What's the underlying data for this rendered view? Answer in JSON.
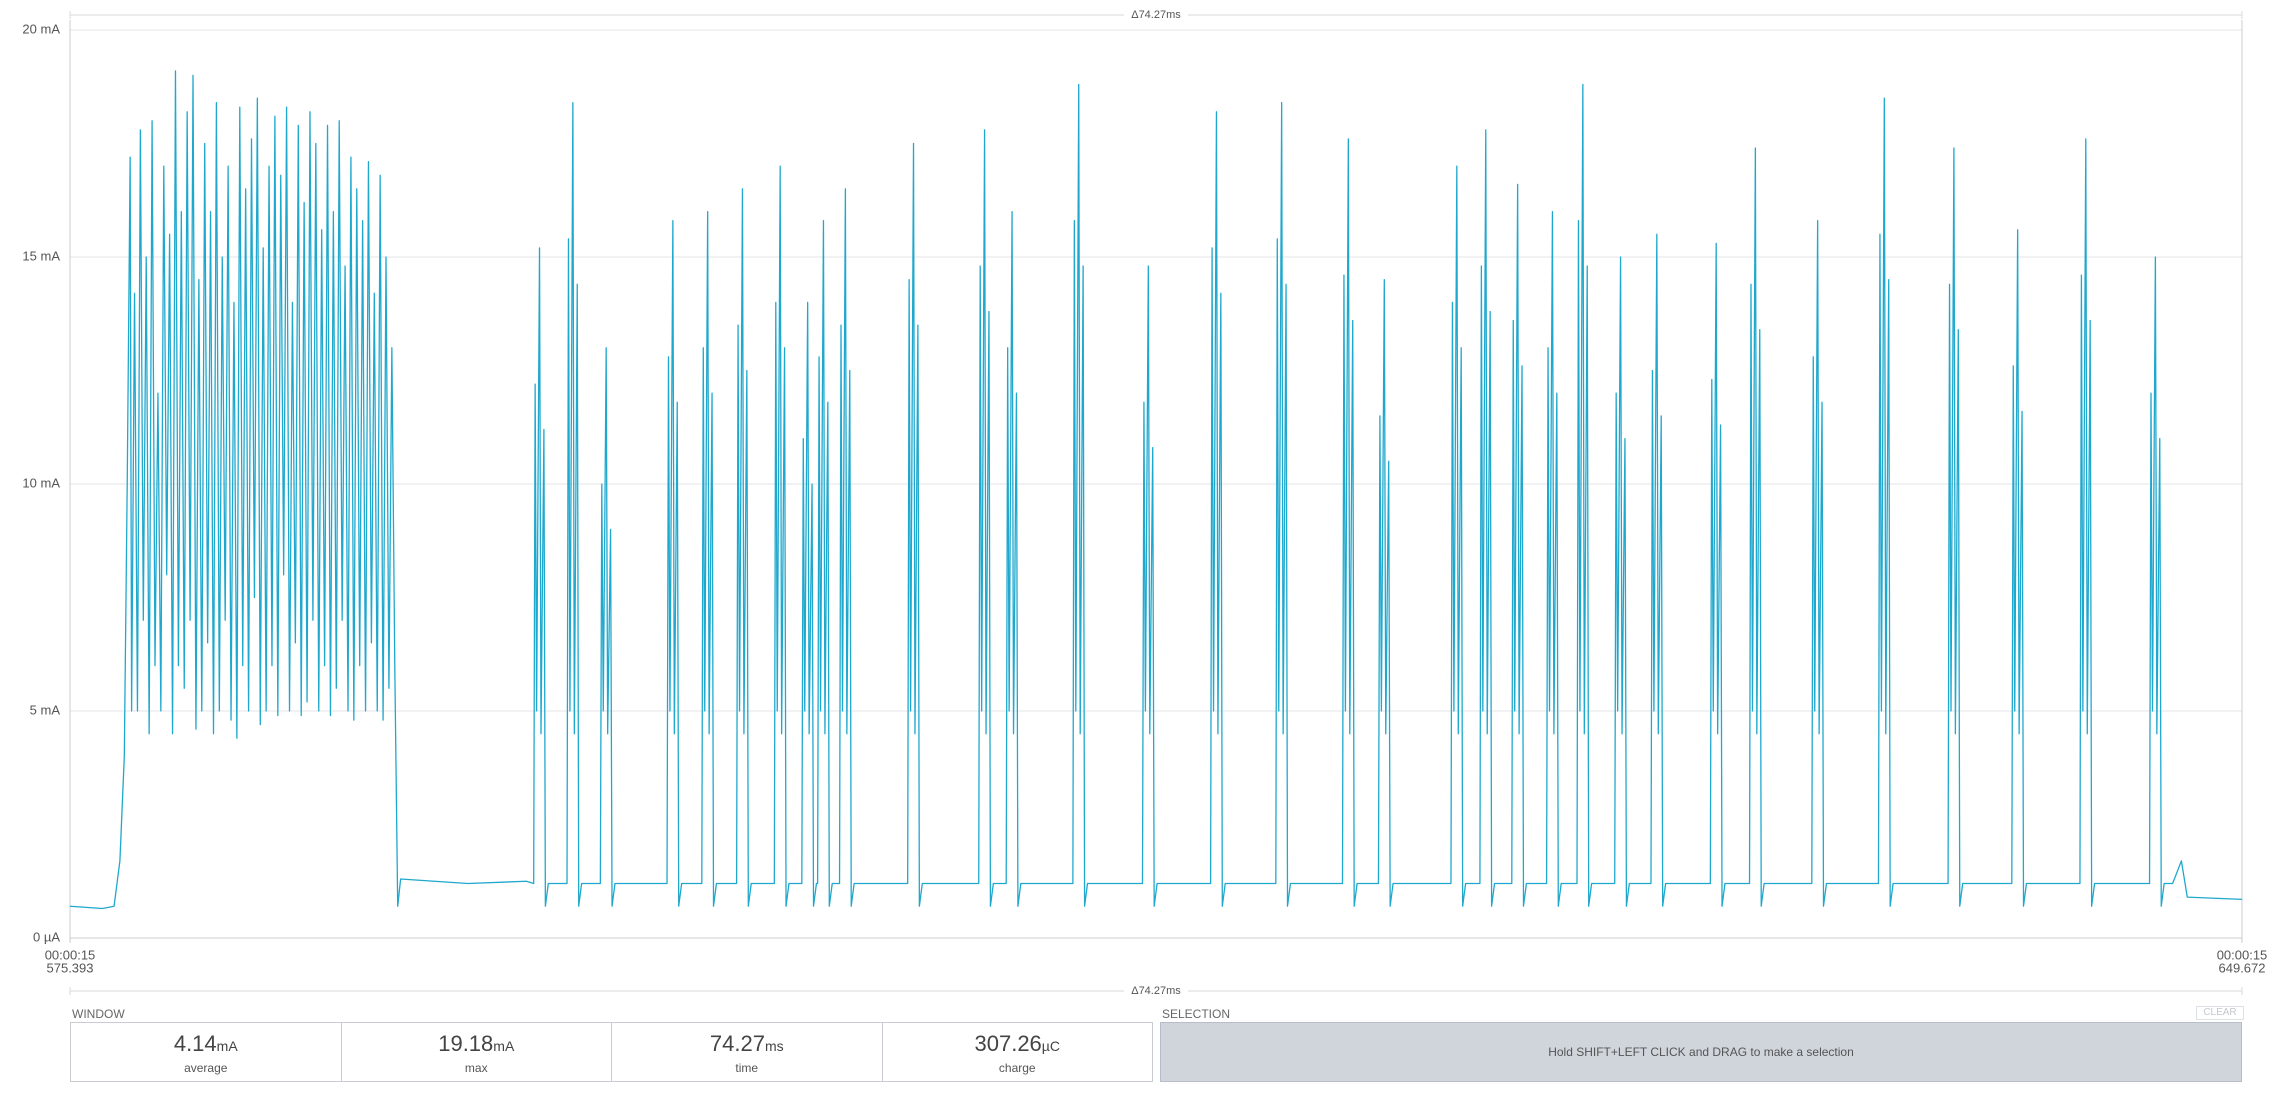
{
  "chart_data": {
    "type": "line",
    "window_label": "Δ74.27ms",
    "xlim": [
      575.393,
      649.672
    ],
    "xticks": [
      {
        "value": 575.393,
        "label": [
          "00:00:15",
          "575.393"
        ]
      },
      {
        "value": 649.672,
        "label": [
          "00:00:15",
          "649.672"
        ]
      }
    ],
    "ylim": [
      0,
      20
    ],
    "yticks": [
      {
        "value": 0,
        "label": "0 µA"
      },
      {
        "value": 5,
        "label": "5 mA"
      },
      {
        "value": 10,
        "label": "10 mA"
      },
      {
        "value": 15,
        "label": "15 mA"
      },
      {
        "value": 20,
        "label": "20 mA"
      }
    ],
    "grid": true,
    "color": "#1fa8cd",
    "x": [
      575.393,
      576.5,
      576.9,
      577.1,
      577.25,
      577.35,
      577.45,
      577.5,
      577.6,
      577.7,
      577.8,
      577.9,
      578.0,
      578.1,
      578.2,
      578.3,
      578.4,
      578.5,
      578.6,
      578.7,
      578.8,
      578.9,
      579.0,
      579.1,
      579.2,
      579.3,
      579.4,
      579.5,
      579.6,
      579.7,
      579.8,
      579.9,
      580.0,
      580.1,
      580.2,
      580.3,
      580.4,
      580.5,
      580.6,
      580.7,
      580.8,
      580.9,
      581.0,
      581.1,
      581.2,
      581.3,
      581.4,
      581.5,
      581.6,
      581.7,
      581.8,
      581.9,
      582.0,
      582.1,
      582.2,
      582.3,
      582.4,
      582.5,
      582.6,
      582.7,
      582.8,
      582.9,
      583.0,
      583.1,
      583.2,
      583.3,
      583.4,
      583.5,
      583.6,
      583.7,
      583.8,
      583.9,
      584.0,
      584.1,
      584.2,
      584.3,
      584.4,
      584.5,
      584.6,
      584.7,
      584.8,
      584.9,
      585.0,
      585.1,
      585.2,
      585.3,
      585.4,
      585.5,
      585.6,
      585.7,
      585.8,
      585.9,
      586.0,
      586.1,
      586.2,
      586.3,
      586.4,
      586.5,
      586.6,
      586.7,
      589.0,
      591.0,
      591.25,
      591.3,
      591.35,
      591.45,
      591.5,
      591.6,
      591.65,
      591.75,
      592.39,
      592.44,
      592.49,
      592.59,
      592.64,
      592.74,
      592.79,
      592.89,
      593.53,
      593.58,
      593.63,
      593.73,
      593.78,
      593.88,
      593.93,
      594.03,
      595.81,
      595.86,
      595.91,
      596.01,
      596.06,
      596.16,
      596.21,
      596.31,
      597.0,
      597.05,
      597.1,
      597.2,
      597.25,
      597.35,
      597.4,
      597.5,
      598.19,
      598.24,
      598.29,
      598.39,
      598.44,
      598.54,
      598.59,
      598.69,
      599.48,
      599.53,
      599.58,
      599.68,
      599.73,
      599.83,
      599.88,
      599.98,
      600.42,
      600.47,
      600.52,
      600.62,
      600.67,
      600.77,
      600.82,
      600.92,
      600.96,
      601.01,
      601.06,
      601.16,
      601.21,
      601.31,
      601.36,
      601.46,
      601.71,
      601.76,
      601.81,
      601.91,
      601.96,
      602.06,
      602.11,
      602.21,
      604.04,
      604.09,
      604.14,
      604.24,
      604.29,
      604.39,
      604.44,
      604.54,
      606.47,
      606.52,
      606.57,
      606.67,
      606.72,
      606.82,
      606.87,
      606.97,
      607.41,
      607.46,
      607.51,
      607.61,
      607.66,
      607.76,
      607.81,
      607.91,
      609.69,
      609.74,
      609.79,
      609.89,
      609.94,
      610.04,
      610.09,
      610.19,
      612.07,
      612.12,
      612.17,
      612.27,
      612.32,
      612.42,
      612.47,
      612.57,
      614.4,
      614.45,
      614.5,
      614.6,
      614.65,
      614.75,
      614.8,
      614.9,
      616.63,
      616.68,
      616.73,
      616.83,
      616.88,
      616.98,
      617.03,
      617.13,
      618.91,
      618.96,
      619.01,
      619.11,
      619.16,
      619.26,
      619.31,
      619.41,
      620.14,
      620.19,
      620.24,
      620.34,
      620.39,
      620.49,
      620.54,
      620.64,
      622.62,
      622.67,
      622.72,
      622.82,
      622.87,
      622.97,
      623.02,
      623.12,
      623.61,
      623.66,
      623.71,
      623.81,
      623.86,
      623.96,
      624.01,
      624.11,
      624.7,
      624.75,
      624.8,
      624.9,
      624.95,
      625.05,
      625.1,
      625.2,
      625.89,
      625.94,
      625.99,
      626.09,
      626.14,
      626.24,
      626.29,
      626.39,
      626.93,
      626.98,
      627.03,
      627.13,
      627.18,
      627.28,
      627.33,
      627.43,
      628.22,
      628.27,
      628.32,
      628.42,
      628.47,
      628.57,
      628.62,
      628.72,
      629.46,
      629.51,
      629.56,
      629.66,
      629.71,
      629.81,
      629.86,
      629.96,
      631.49,
      631.54,
      631.59,
      631.69,
      631.74,
      631.84,
      631.89,
      631.99,
      632.83,
      632.88,
      632.93,
      633.03,
      633.08,
      633.18,
      633.23,
      633.33,
      634.96,
      635.01,
      635.06,
      635.16,
      635.21,
      635.31,
      635.36,
      635.46,
      637.24,
      637.29,
      637.34,
      637.44,
      637.49,
      637.59,
      637.64,
      637.74,
      639.62,
      639.67,
      639.72,
      639.82,
      639.87,
      639.97,
      640.02,
      640.12,
      641.8,
      641.85,
      641.9,
      642.0,
      642.05,
      642.15,
      642.2,
      642.3,
      644.13,
      644.18,
      644.23,
      644.33,
      644.38,
      644.48,
      644.53,
      644.63,
      646.51,
      646.56,
      646.61,
      646.71,
      646.76,
      646.86,
      646.91,
      647.01,
      647.3,
      647.6,
      647.8,
      649.672
    ],
    "values": [
      0.7,
      0.65,
      0.7,
      1.7,
      4,
      10,
      17.2,
      5,
      14.2,
      5,
      17.8,
      7,
      15,
      4.5,
      18,
      6,
      12,
      5,
      17,
      8,
      15.5,
      4.5,
      19.1,
      6,
      16,
      5.5,
      18.2,
      7,
      19,
      4.6,
      14.5,
      5,
      17.5,
      6.5,
      16,
      4.5,
      18.4,
      5,
      15,
      7,
      17,
      4.8,
      14,
      4.4,
      18.3,
      6,
      16.5,
      5,
      17.6,
      7.5,
      18.5,
      4.7,
      15.2,
      5,
      17,
      6,
      18.1,
      4.9,
      16.8,
      8,
      18.3,
      5,
      14,
      6.5,
      17.9,
      4.9,
      16.2,
      5.2,
      18.2,
      7,
      17.5,
      5,
      15.6,
      6,
      17.9,
      4.9,
      16,
      5.5,
      18,
      7,
      14.8,
      5,
      17.2,
      4.8,
      16.5,
      6,
      15.8,
      5,
      17.1,
      6.5,
      14.2,
      5,
      16.8,
      4.8,
      15,
      5.5,
      13,
      6,
      0.7,
      1.3,
      1.2,
      1.25,
      1.2,
      12.2,
      5,
      15.2,
      4.5,
      11.2,
      0.7,
      1.2,
      1.2,
      15.4,
      5,
      18.4,
      4.5,
      14.4,
      0.7,
      1.2,
      1.2,
      10,
      5,
      13,
      4.5,
      9,
      0.7,
      1.2,
      1.2,
      12.8,
      5,
      15.8,
      4.5,
      11.8,
      0.7,
      1.2,
      1.2,
      13,
      5,
      16,
      4.5,
      12,
      0.7,
      1.2,
      1.2,
      13.5,
      5,
      16.5,
      4.5,
      12.5,
      0.7,
      1.2,
      1.2,
      14,
      5,
      17,
      4.5,
      13,
      0.7,
      1.2,
      1.2,
      11,
      5,
      14,
      4.5,
      10,
      0.7,
      1.2,
      1.2,
      12.8,
      5,
      15.8,
      4.5,
      11.8,
      0.7,
      1.2,
      1.2,
      13.5,
      5,
      16.5,
      4.5,
      12.5,
      0.7,
      1.2,
      1.2,
      14.5,
      5,
      17.5,
      4.5,
      13.5,
      0.7,
      1.2,
      1.2,
      14.8,
      5,
      17.8,
      4.5,
      13.8,
      0.7,
      1.2,
      1.2,
      13,
      5,
      16,
      4.5,
      12,
      0.7,
      1.2,
      1.2,
      15.8,
      5,
      18.8,
      4.5,
      14.8,
      0.7,
      1.2,
      1.2,
      11.8,
      5,
      14.8,
      4.5,
      10.8,
      0.7,
      1.2,
      1.2,
      15.2,
      5,
      18.2,
      4.5,
      14.2,
      0.7,
      1.2,
      1.2,
      15.4,
      5,
      18.4,
      4.5,
      14.4,
      0.7,
      1.2,
      1.2,
      14.6,
      5,
      17.6,
      4.5,
      13.6,
      0.7,
      1.2,
      1.2,
      11.5,
      5,
      14.5,
      4.5,
      10.5,
      0.7,
      1.2,
      1.2,
      14,
      5,
      17,
      4.5,
      13,
      0.7,
      1.2,
      1.2,
      14.8,
      5,
      17.8,
      4.5,
      13.8,
      0.7,
      1.2,
      1.2,
      13.6,
      5,
      16.6,
      4.5,
      12.6,
      0.7,
      1.2,
      1.2,
      13,
      5,
      16,
      4.5,
      12,
      0.7,
      1.2,
      1.2,
      15.8,
      5,
      18.8,
      4.5,
      14.8,
      0.7,
      1.2,
      1.2,
      12,
      5,
      15,
      4.5,
      11,
      0.7,
      1.2,
      1.2,
      12.5,
      5,
      15.5,
      4.5,
      11.5,
      0.7,
      1.2,
      1.2,
      12.3,
      5,
      15.3,
      4.5,
      11.3,
      0.7,
      1.2,
      1.2,
      14.4,
      5,
      17.4,
      4.5,
      13.4,
      0.7,
      1.2,
      1.2,
      12.8,
      5,
      15.8,
      4.5,
      11.8,
      0.7,
      1.2,
      1.2,
      15.5,
      5,
      18.5,
      4.5,
      14.5,
      0.7,
      1.2,
      1.2,
      14.4,
      5,
      17.4,
      4.5,
      13.4,
      0.7,
      1.2,
      1.2,
      12.6,
      5,
      15.6,
      4.5,
      11.6,
      0.7,
      1.2,
      1.2,
      14.6,
      5,
      17.6,
      4.5,
      13.6,
      0.7,
      1.2,
      1.2,
      12,
      5,
      15,
      4.5,
      11,
      0.7,
      1.2,
      1.2,
      1.7,
      0.9,
      0.85
    ]
  },
  "window": {
    "title": "WINDOW",
    "stats": [
      {
        "value": 4.14,
        "unit": "mA",
        "label": "average"
      },
      {
        "value": 19.18,
        "unit": "mA",
        "label": "max"
      },
      {
        "value": 74.27,
        "unit": "ms",
        "label": "time"
      },
      {
        "value": 307.26,
        "unit": "µC",
        "label": "charge"
      }
    ]
  },
  "selection": {
    "title": "SELECTION",
    "button": "CLEAR",
    "hint": "Hold SHIFT+LEFT CLICK and DRAG to make a selection"
  }
}
